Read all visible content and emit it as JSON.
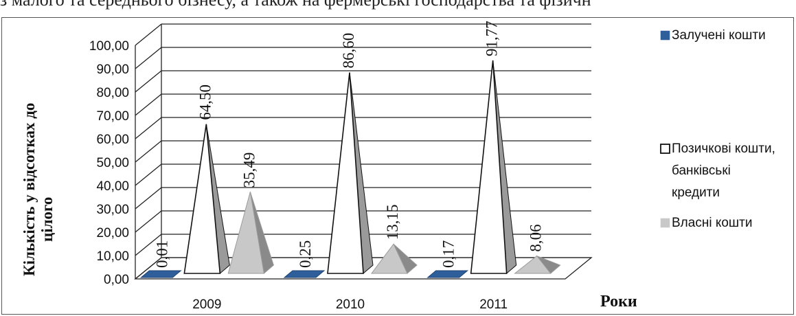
{
  "top_text": "з малого та середнього бізнесу, а також на фермерські господарства та фізичн",
  "chart_data": {
    "type": "bar",
    "style": "3d-pyramid",
    "categories": [
      "2009",
      "2010",
      "2011"
    ],
    "series": [
      {
        "name": "Залучені кошти",
        "values": [
          0.01,
          0.25,
          0.17
        ],
        "color": "#2f5f9a"
      },
      {
        "name": "Позичкові кошти, банківські кредити",
        "values": [
          64.5,
          86.6,
          91.77
        ],
        "color": "#ffffff"
      },
      {
        "name": "Власні кошти",
        "values": [
          35.49,
          13.15,
          8.06
        ],
        "color": "#c8c8c8"
      }
    ],
    "data_labels": [
      [
        "0,01",
        "64,50",
        "35,49"
      ],
      [
        "0,25",
        "86,60",
        "13,15"
      ],
      [
        "0,17",
        "91,77",
        "8,06"
      ]
    ],
    "y_ticks": [
      "0,00",
      "10,00",
      "20,00",
      "30,00",
      "40,00",
      "50,00",
      "60,00",
      "70,00",
      "80,00",
      "90,00",
      "100,00"
    ],
    "ylim": [
      0,
      100
    ],
    "ylabel_line1": "Кількість у відсотках до",
    "ylabel_line2": "цілого",
    "xlabel": "Роки",
    "legend": {
      "position": "right",
      "items": [
        {
          "lines": [
            "Залучені кошти"
          ],
          "swatch": "#2f5f9a",
          "outline": false
        },
        {
          "lines": [
            "Позичкові кошти,",
            "банківські",
            "кредити"
          ],
          "swatch": "#ffffff",
          "outline": true
        },
        {
          "lines": [
            "Власні кошти"
          ],
          "swatch": "#c8c8c8",
          "outline": false
        }
      ]
    },
    "grid": true
  }
}
